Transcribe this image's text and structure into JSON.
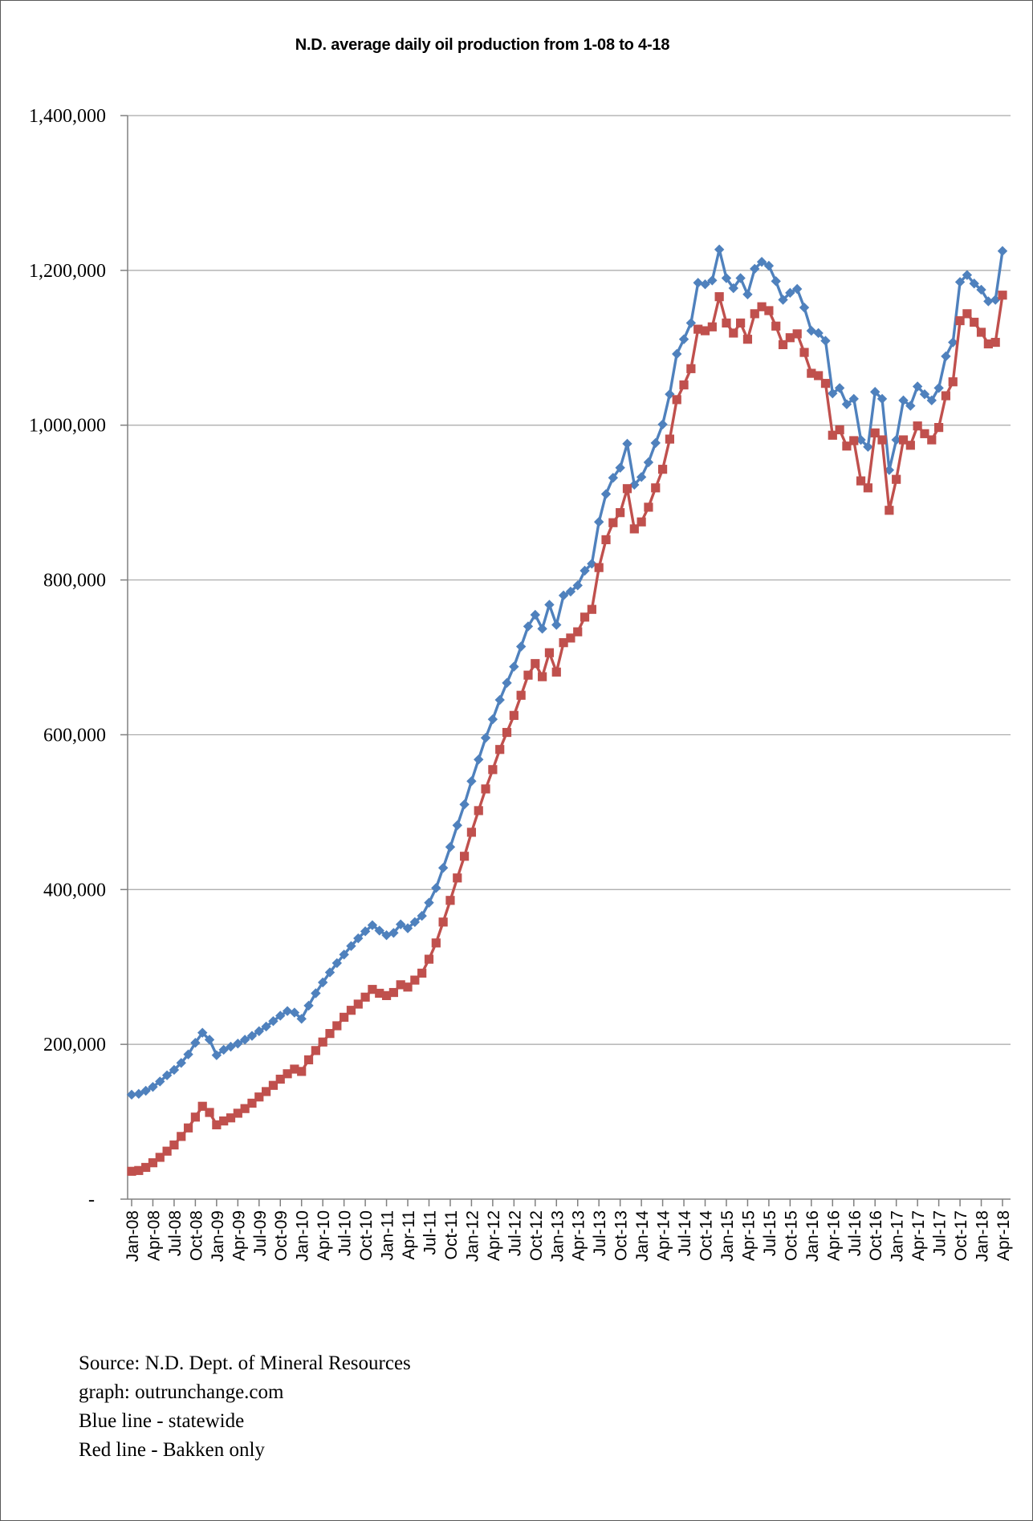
{
  "chart": {
    "title": "N.D. average daily oil production from 1-08 to 4-18"
  },
  "source": {
    "lines": [
      "Source: N.D. Dept. of Mineral Resources",
      "graph: outrunchange.com",
      "Blue line - statewide",
      "Red line - Bakken only"
    ]
  },
  "chart_data": {
    "type": "line",
    "title": "N.D. average daily oil production from 1-08 to 4-18",
    "xlabel": "",
    "ylabel": "",
    "x_unit": "month",
    "x_start": "Jan-08",
    "x_end": "Apr-18",
    "x_tick_interval_months": 3,
    "x_tick_labels": [
      "Jan-08",
      "Apr-08",
      "Jul-08",
      "Oct-08",
      "Jan-09",
      "Apr-09",
      "Jul-09",
      "Oct-09",
      "Jan-10",
      "Apr-10",
      "Jul-10",
      "Oct-10",
      "Jan-11",
      "Apr-11",
      "Jul-11",
      "Oct-11",
      "Jan-12",
      "Apr-12",
      "Jul-12",
      "Oct-12",
      "Jan-13",
      "Apr-13",
      "Jul-13",
      "Oct-13",
      "Jan-14",
      "Apr-14",
      "Jul-14",
      "Oct-14",
      "Jan-15",
      "Apr-15",
      "Jul-15",
      "Oct-15",
      "Jan-16",
      "Apr-16",
      "Jul-16",
      "Oct-16",
      "Jan-17",
      "Apr-17",
      "Jul-17",
      "Oct-17",
      "Jan-18",
      "Apr-18"
    ],
    "y_tick_labels": [
      "1,400,000",
      "1,200,000",
      "1,000,000",
      "800,000",
      "600,000",
      "400,000",
      "200,000",
      "-"
    ],
    "ylim": [
      0,
      1400000
    ],
    "grid": "horizontal",
    "legend_position": "none",
    "colors": {
      "statewide_blue": "#4F81BD",
      "bakken_red": "#C0504D",
      "gridline": "#A6A6A6",
      "axis": "#808080"
    },
    "series": [
      {
        "name": "statewide",
        "color": "#4F81BD",
        "marker": "diamond",
        "values": [
          135000,
          136000,
          140000,
          145000,
          152000,
          160000,
          167000,
          176000,
          187000,
          202000,
          215000,
          206000,
          186000,
          193000,
          197000,
          201000,
          206000,
          211000,
          217000,
          223000,
          230000,
          237000,
          243000,
          241000,
          233000,
          250000,
          266000,
          280000,
          293000,
          305000,
          316000,
          327000,
          337000,
          346000,
          354000,
          347000,
          341000,
          344000,
          355000,
          350000,
          358000,
          366000,
          383000,
          402000,
          428000,
          455000,
          483000,
          510000,
          540000,
          568000,
          596000,
          620000,
          645000,
          667000,
          688000,
          714000,
          740000,
          755000,
          737000,
          768000,
          742000,
          780000,
          785000,
          793000,
          812000,
          821000,
          875000,
          911000,
          932000,
          945000,
          976000,
          923000,
          933000,
          952000,
          977000,
          1001000,
          1040000,
          1092000,
          1111000,
          1132000,
          1184000,
          1182000,
          1187000,
          1227000,
          1190000,
          1177000,
          1190000,
          1169000,
          1202000,
          1211000,
          1206000,
          1186000,
          1162000,
          1171000,
          1176000,
          1152000,
          1122000,
          1119000,
          1109000,
          1041000,
          1048000,
          1027000,
          1034000,
          981000,
          972000,
          1043000,
          1034000,
          942000,
          981000,
          1032000,
          1025000,
          1050000,
          1040000,
          1032000,
          1048000,
          1089000,
          1107000,
          1185000,
          1194000,
          1183000,
          1175000,
          1160000,
          1162000,
          1225000
        ]
      },
      {
        "name": "bakken-only",
        "color": "#C0504D",
        "marker": "square",
        "values": [
          36000,
          37000,
          41000,
          47000,
          54000,
          62000,
          70000,
          81000,
          92000,
          106000,
          120000,
          112000,
          96000,
          101000,
          105000,
          111000,
          117000,
          124000,
          132000,
          139000,
          147000,
          155000,
          162000,
          168000,
          165000,
          180000,
          192000,
          203000,
          214000,
          224000,
          235000,
          244000,
          252000,
          261000,
          271000,
          266000,
          263000,
          267000,
          277000,
          274000,
          283000,
          292000,
          310000,
          331000,
          358000,
          386000,
          415000,
          443000,
          474000,
          502000,
          530000,
          555000,
          581000,
          603000,
          625000,
          651000,
          677000,
          692000,
          675000,
          706000,
          681000,
          719000,
          725000,
          733000,
          752000,
          762000,
          816000,
          852000,
          874000,
          887000,
          918000,
          866000,
          875000,
          894000,
          919000,
          943000,
          982000,
          1033000,
          1052000,
          1073000,
          1124000,
          1122000,
          1127000,
          1166000,
          1132000,
          1119000,
          1132000,
          1111000,
          1144000,
          1153000,
          1148000,
          1128000,
          1104000,
          1113000,
          1118000,
          1094000,
          1067000,
          1064000,
          1054000,
          987000,
          994000,
          973000,
          980000,
          928000,
          919000,
          990000,
          981000,
          890000,
          930000,
          981000,
          974000,
          999000,
          989000,
          981000,
          997000,
          1038000,
          1056000,
          1135000,
          1144000,
          1133000,
          1120000,
          1105000,
          1107000,
          1168000
        ]
      }
    ]
  }
}
